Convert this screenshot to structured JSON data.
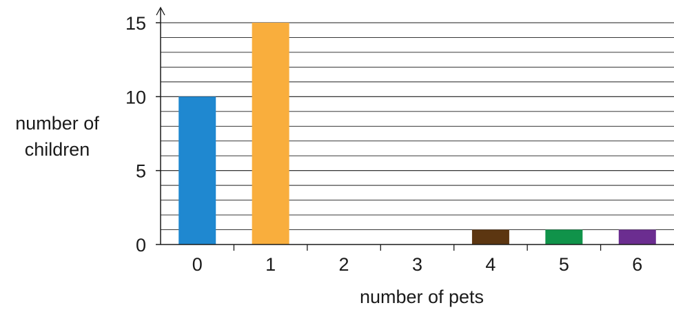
{
  "chart_data": {
    "type": "bar",
    "title": "",
    "xlabel": "number of pets",
    "ylabel_lines": [
      "number of",
      "children"
    ],
    "categories": [
      "0",
      "1",
      "2",
      "3",
      "4",
      "5",
      "6"
    ],
    "values": [
      10,
      15,
      0,
      0,
      1,
      1,
      1
    ],
    "bar_colors": [
      "#1f88d0",
      "#f9ae3d",
      "#f9ae3d",
      "#f9ae3d",
      "#5c3611",
      "#10934a",
      "#6b2d90"
    ],
    "ylim": [
      0,
      15
    ],
    "y_major_ticks": [
      0,
      5,
      10,
      15
    ],
    "y_minor_step": 1,
    "grid": true,
    "legend": "none"
  }
}
